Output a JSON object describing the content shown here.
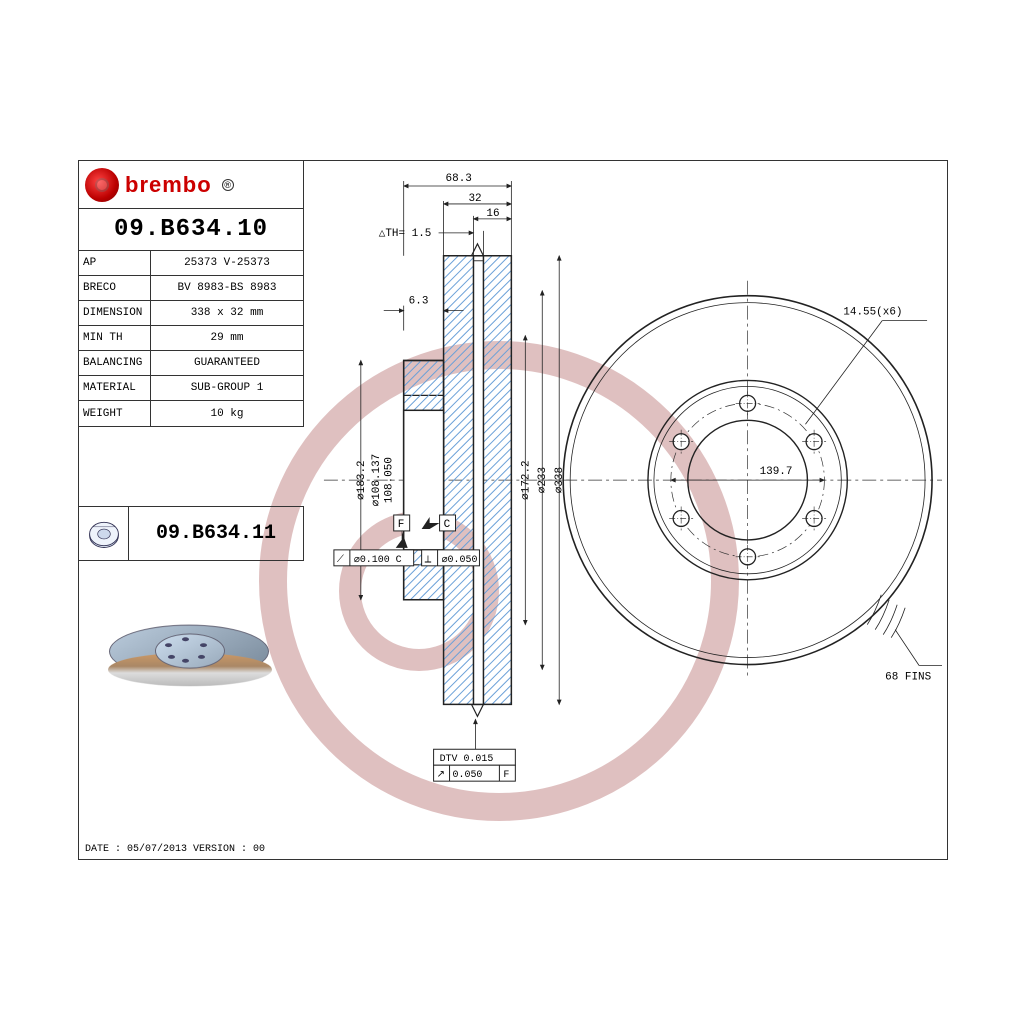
{
  "logo": {
    "text": "brembo",
    "reg": "®"
  },
  "part_number": "09.B634.10",
  "specs": [
    {
      "k": "AP",
      "v": "25373 V-25373"
    },
    {
      "k": "BRECO",
      "v": "BV 8983-BS 8983"
    },
    {
      "k": "DIMENSION",
      "v": "338 x 32 mm"
    },
    {
      "k": "MIN TH",
      "v": "29 mm"
    },
    {
      "k": "BALANCING",
      "v": "GUARANTEED"
    },
    {
      "k": "MATERIAL",
      "v": "SUB-GROUP 1"
    },
    {
      "k": "WEIGHT",
      "v": "10 kg"
    }
  ],
  "variant": "09.B634.11",
  "footer": "DATE : 05/07/2013 VERSION : 00",
  "section": {
    "dims_top": {
      "d1": "68.3",
      "d2": "32",
      "d3": "16"
    },
    "delta_th": "△TH= 1.5",
    "dim_left": "6.3",
    "diameters": [
      "⌀183.2",
      "⌀108.137",
      "108.050"
    ],
    "diameters_r": [
      "⌀172.2",
      "⌀233",
      "⌀338"
    ],
    "gdt_datums": {
      "F": "F",
      "C": "C"
    },
    "gdt_flat": "⌀0.100 C",
    "gdt_para": "⌀0.050",
    "dtv": "DTV 0.015",
    "runout": "/ 0.050 F",
    "hatch_color": "#6aa0d8"
  },
  "front_view": {
    "bolt": "14.55(x6)",
    "pcd": "139.7",
    "fins": "68 FINS",
    "outer_d": 338,
    "hub_d": 183.2,
    "pcd_d": 139.7,
    "bolt_d": 14.55,
    "n_bolts": 6
  },
  "colors": {
    "line": "#222222",
    "thin": "#555555",
    "hatch": "#6aa0d8",
    "center": "#333333",
    "wm": "rgba(140,30,30,0.28)"
  }
}
